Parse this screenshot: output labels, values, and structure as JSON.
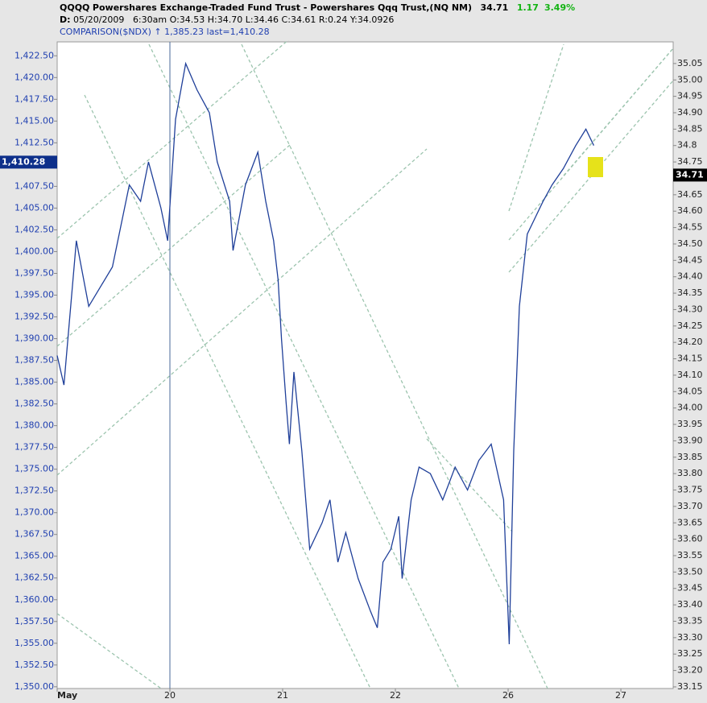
{
  "chart_data": {
    "type": "line",
    "header": {
      "symbol": "QQQQ",
      "name": "Powershares Exchange-Traded Fund Trust - Powershares Qqq Trust,(NQ NM)",
      "last": "34.71",
      "change": "1.17",
      "change_pct": "3.49%",
      "date_label": "D:",
      "date": "05/20/2009",
      "time": "6:30am",
      "ohlc": "O:34.53 H:34.70 L:34.46 C:34.61 R:0.24 Y:34.0926",
      "comparison": "COMPARISON($NDX) ↑ 1,385.23 last=1,410.28"
    },
    "x": [
      0,
      0.06,
      0.17,
      0.28,
      0.49,
      0.64,
      0.74,
      0.81,
      0.92,
      0.98,
      1.05,
      1.14,
      1.24,
      1.35,
      1.42,
      1.53,
      1.56,
      1.67,
      1.78,
      1.85,
      1.92,
      1.96,
      1.99,
      2.03,
      2.06,
      2.1,
      2.17,
      2.24,
      2.35,
      2.42,
      2.49,
      2.56,
      2.67,
      2.78,
      2.84,
      2.89,
      2.96,
      3.03,
      3.06,
      3.14,
      3.21,
      3.31,
      3.42,
      3.53,
      3.64,
      3.74,
      3.85,
      3.96,
      4.01,
      4.05,
      4.1,
      4.17,
      4.24,
      4.31,
      4.39,
      4.49,
      4.6,
      4.69,
      4.76
    ],
    "series": [
      {
        "name": "QQQQ",
        "color": "#1f3f99",
        "axis": "y2",
        "values": [
          34.16,
          34.07,
          34.51,
          34.31,
          34.43,
          34.68,
          34.63,
          34.75,
          34.61,
          34.51,
          34.88,
          35.05,
          34.97,
          34.9,
          34.75,
          34.63,
          34.48,
          34.68,
          34.78,
          34.63,
          34.51,
          34.39,
          34.21,
          34.02,
          33.89,
          34.11,
          33.87,
          33.57,
          33.65,
          33.72,
          33.53,
          33.62,
          33.48,
          33.38,
          33.33,
          33.53,
          33.57,
          33.67,
          33.48,
          33.72,
          33.82,
          33.8,
          33.72,
          33.82,
          33.75,
          33.84,
          33.89,
          33.72,
          33.28,
          33.87,
          34.31,
          34.53,
          34.58,
          34.63,
          34.68,
          34.73,
          34.8,
          34.85,
          34.8
        ]
      }
    ],
    "xlim": [
      0,
      5.464
    ],
    "xticks": [
      {
        "value": 0,
        "label": "May"
      },
      {
        "value": 1,
        "label": "20"
      },
      {
        "value": 2,
        "label": "21"
      },
      {
        "value": 3,
        "label": "22"
      },
      {
        "value": 4,
        "label": "26"
      },
      {
        "value": 5,
        "label": "27"
      }
    ],
    "ylim": [
      1349.8,
      1424.1
    ],
    "yticks": [
      {
        "value": 1350,
        "label": "1,350.00"
      },
      {
        "value": 1352.5,
        "label": "1,352.50"
      },
      {
        "value": 1355,
        "label": "1,355.00"
      },
      {
        "value": 1357.5,
        "label": "1,357.50"
      },
      {
        "value": 1360,
        "label": "1,360.00"
      },
      {
        "value": 1362.5,
        "label": "1,362.50"
      },
      {
        "value": 1365,
        "label": "1,365.00"
      },
      {
        "value": 1367.5,
        "label": "1,367.50"
      },
      {
        "value": 1370,
        "label": "1,370.00"
      },
      {
        "value": 1372.5,
        "label": "1,372.50"
      },
      {
        "value": 1375,
        "label": "1,375.00"
      },
      {
        "value": 1377.5,
        "label": "1,377.50"
      },
      {
        "value": 1380,
        "label": "1,380.00"
      },
      {
        "value": 1382.5,
        "label": "1,382.50"
      },
      {
        "value": 1385,
        "label": "1,385.00"
      },
      {
        "value": 1387.5,
        "label": "1,387.50"
      },
      {
        "value": 1390,
        "label": "1,390.00"
      },
      {
        "value": 1392.5,
        "label": "1,392.50"
      },
      {
        "value": 1395,
        "label": "1,395.00"
      },
      {
        "value": 1397.5,
        "label": "1,397.50"
      },
      {
        "value": 1400,
        "label": "1,400.00"
      },
      {
        "value": 1402.5,
        "label": "1,402.50"
      },
      {
        "value": 1405,
        "label": "1,405.00"
      },
      {
        "value": 1407.5,
        "label": "1,407.50"
      },
      {
        "value": 1412.5,
        "label": "1,412.50"
      },
      {
        "value": 1415,
        "label": "1,415.00"
      },
      {
        "value": 1417.5,
        "label": "1,417.50"
      },
      {
        "value": 1420,
        "label": "1,420.00"
      },
      {
        "value": 1422.5,
        "label": "1,422.50"
      }
    ],
    "y2lim": [
      33.145,
      35.116
    ],
    "y2ticks": [
      33.15,
      {
        "value": 33.2,
        "label": "33.20"
      },
      33.25,
      {
        "value": 33.3,
        "label": "33.30"
      },
      33.35,
      {
        "value": 33.4,
        "label": "33.40"
      },
      33.45,
      {
        "value": 33.5,
        "label": "33.50"
      },
      33.55,
      {
        "value": 33.6,
        "label": "33.60"
      },
      33.65,
      {
        "value": 33.7,
        "label": "33.70"
      },
      33.75,
      {
        "value": 33.8,
        "label": "33.80"
      },
      33.85,
      {
        "value": 33.9,
        "label": "33.90"
      },
      33.95,
      {
        "value": 34,
        "label": "34.00"
      },
      34.05,
      {
        "value": 34.1,
        "label": "34.10"
      },
      34.15,
      {
        "value": 34.2,
        "label": "34.20"
      },
      34.25,
      {
        "value": 34.3,
        "label": "34.30"
      },
      34.35,
      {
        "value": 34.4,
        "label": "34.40"
      },
      34.45,
      {
        "value": 34.5,
        "label": "34.50"
      },
      34.55,
      {
        "value": 34.6,
        "label": "34.60"
      },
      34.65,
      {
        "value": 34.75,
        "label": "34.75"
      },
      34.8,
      34.85,
      {
        "value": 34.9,
        "label": "34.90"
      },
      34.95,
      {
        "value": 35,
        "label": "35.00"
      },
      35.05
    ],
    "price_tags": [
      {
        "value": 1410.28,
        "label": "1,410.28",
        "axis": "y"
      },
      {
        "value": 34.71,
        "label": "34.71",
        "axis": "y2"
      }
    ]
  }
}
